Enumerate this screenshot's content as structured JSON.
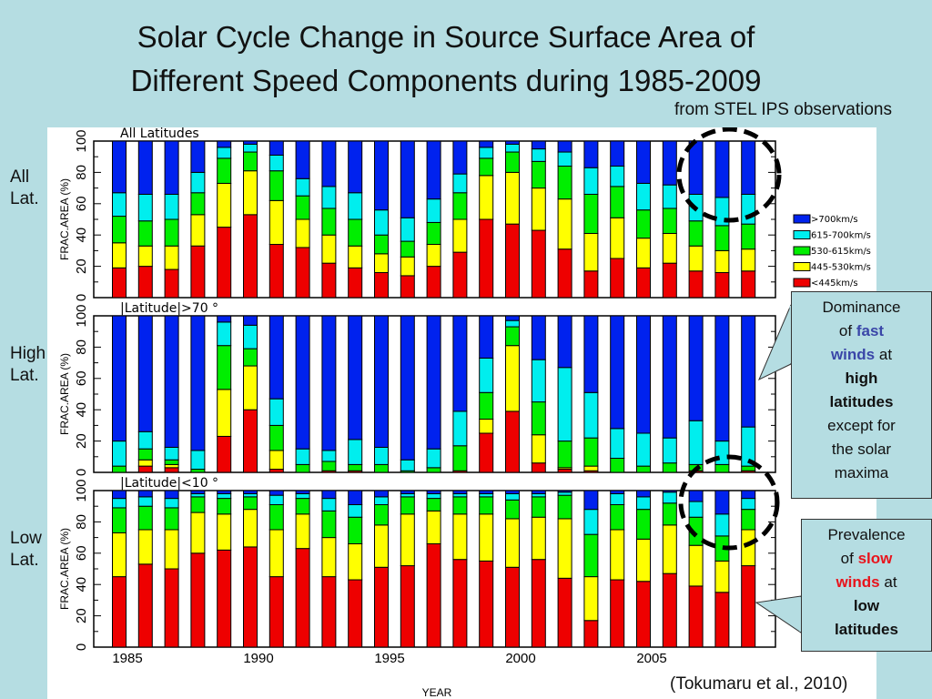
{
  "title_line1": "Solar Cycle Change in Source Surface Area of",
  "title_line2": "Different Speed Components during 1985-2009",
  "subtitle": "from STEL IPS observations",
  "side_labels": [
    {
      "line1": "All",
      "line2": "Lat."
    },
    {
      "line1": "High",
      "line2": "Lat."
    },
    {
      "line1": "Low",
      "line2": "Lat."
    }
  ],
  "callouts": {
    "high": {
      "w1": "Dominance",
      "w2": "of",
      "w3": "fast",
      "w4": "winds",
      "w5": "at",
      "w6": "high",
      "w7": "latitudes",
      "w8": "except for",
      "w9": "the solar",
      "w10": "maxima"
    },
    "low": {
      "w1": "Prevalence",
      "w2": "of",
      "w3": "slow",
      "w4": "winds",
      "w5": "at",
      "w6": "low",
      "w7": "latitudes"
    }
  },
  "citation": "(Tokumaru et al., 2010)",
  "chart_data": {
    "type": "bar",
    "stacked": true,
    "xlabel": "YEAR",
    "ylabel": "FRAC.AREA (%)",
    "ylim": [
      0,
      100
    ],
    "yticks": [
      0,
      20,
      40,
      60,
      80,
      100
    ],
    "xtick_labels": [
      "1985",
      "1990",
      "1995",
      "2000",
      "2005"
    ],
    "categories": [
      1985,
      1986,
      1987,
      1988,
      1989,
      1990,
      1991,
      1992,
      1993,
      1994,
      1995,
      1996,
      1997,
      1998,
      1999,
      2000,
      2001,
      2002,
      2003,
      2004,
      2005,
      2006,
      2007,
      2008,
      2009
    ],
    "legend": [
      {
        "name": ">700km/s",
        "color": "#0022ee"
      },
      {
        "name": "615-700km/s",
        "color": "#00eeee"
      },
      {
        "name": "530-615km/s",
        "color": "#00ee00"
      },
      {
        "name": "445-530km/s",
        "color": "#ffff00"
      },
      {
        "name": "<445km/s",
        "color": "#ee0000"
      }
    ],
    "legend_position": "right",
    "panels": [
      {
        "title": "All  Latitudes",
        "note": "cumulative percentages (top of <445, 445-530, 530-615, 615-700); >700 fills to 100",
        "cumulative": [
          [
            19,
            35,
            52,
            67
          ],
          [
            20,
            33,
            49,
            66
          ],
          [
            18,
            33,
            50,
            66
          ],
          [
            33,
            53,
            67,
            80
          ],
          [
            45,
            73,
            89,
            96
          ],
          [
            53,
            81,
            93,
            98
          ],
          [
            34,
            62,
            81,
            91
          ],
          [
            32,
            50,
            65,
            76
          ],
          [
            22,
            40,
            57,
            71
          ],
          [
            19,
            33,
            50,
            67
          ],
          [
            16,
            28,
            40,
            56
          ],
          [
            14,
            26,
            36,
            51
          ],
          [
            20,
            34,
            48,
            63
          ],
          [
            29,
            50,
            67,
            79
          ],
          [
            50,
            78,
            89,
            96
          ],
          [
            47,
            80,
            93,
            98
          ],
          [
            43,
            70,
            87,
            95
          ],
          [
            31,
            63,
            84,
            93
          ],
          [
            17,
            41,
            66,
            83
          ],
          [
            25,
            51,
            71,
            84
          ],
          [
            19,
            38,
            56,
            73
          ],
          [
            22,
            41,
            57,
            72
          ],
          [
            17,
            33,
            49,
            66
          ],
          [
            16,
            30,
            46,
            64
          ],
          [
            17,
            31,
            47,
            66
          ]
        ]
      },
      {
        "title": "|Latitude|>70 °",
        "cumulative": [
          [
            0,
            0,
            4,
            20
          ],
          [
            4,
            8,
            15,
            26
          ],
          [
            3,
            5,
            8,
            16
          ],
          [
            0,
            0,
            2,
            14
          ],
          [
            23,
            53,
            81,
            96
          ],
          [
            40,
            68,
            79,
            94
          ],
          [
            2,
            14,
            30,
            47
          ],
          [
            0,
            0,
            5,
            15
          ],
          [
            1,
            1,
            7,
            14
          ],
          [
            1,
            1,
            5,
            21
          ],
          [
            0,
            0,
            5,
            16
          ],
          [
            0,
            0,
            1,
            8
          ],
          [
            0,
            0,
            3,
            15
          ],
          [
            1,
            1,
            17,
            39
          ],
          [
            25,
            34,
            51,
            73
          ],
          [
            39,
            81,
            93,
            97
          ],
          [
            6,
            24,
            45,
            72
          ],
          [
            2,
            3,
            20,
            67
          ],
          [
            1,
            4,
            22,
            51
          ],
          [
            0,
            0,
            9,
            28
          ],
          [
            0,
            0,
            4,
            25
          ],
          [
            0,
            0,
            6,
            22
          ],
          [
            1,
            1,
            5,
            33
          ],
          [
            0,
            0,
            5,
            20
          ],
          [
            1,
            1,
            4,
            29
          ]
        ]
      },
      {
        "title": "|Latitude|<10 °",
        "cumulative": [
          [
            45,
            73,
            89,
            95
          ],
          [
            53,
            75,
            90,
            96
          ],
          [
            50,
            75,
            89,
            95
          ],
          [
            60,
            86,
            96,
            98
          ],
          [
            62,
            85,
            95,
            98
          ],
          [
            64,
            88,
            96,
            98
          ],
          [
            45,
            75,
            91,
            97
          ],
          [
            63,
            85,
            95,
            98
          ],
          [
            45,
            70,
            87,
            95
          ],
          [
            43,
            66,
            83,
            91
          ],
          [
            51,
            78,
            91,
            96
          ],
          [
            52,
            85,
            96,
            98
          ],
          [
            66,
            87,
            95,
            98
          ],
          [
            56,
            85,
            96,
            98
          ],
          [
            55,
            85,
            96,
            98
          ],
          [
            51,
            82,
            94,
            98
          ],
          [
            56,
            83,
            96,
            98
          ],
          [
            44,
            82,
            97,
            99
          ],
          [
            17,
            45,
            72,
            88
          ],
          [
            43,
            75,
            91,
            98
          ],
          [
            42,
            69,
            88,
            96
          ],
          [
            47,
            78,
            92,
            99
          ],
          [
            39,
            65,
            83,
            93
          ],
          [
            35,
            55,
            71,
            85
          ],
          [
            52,
            75,
            88,
            95
          ]
        ]
      }
    ]
  }
}
